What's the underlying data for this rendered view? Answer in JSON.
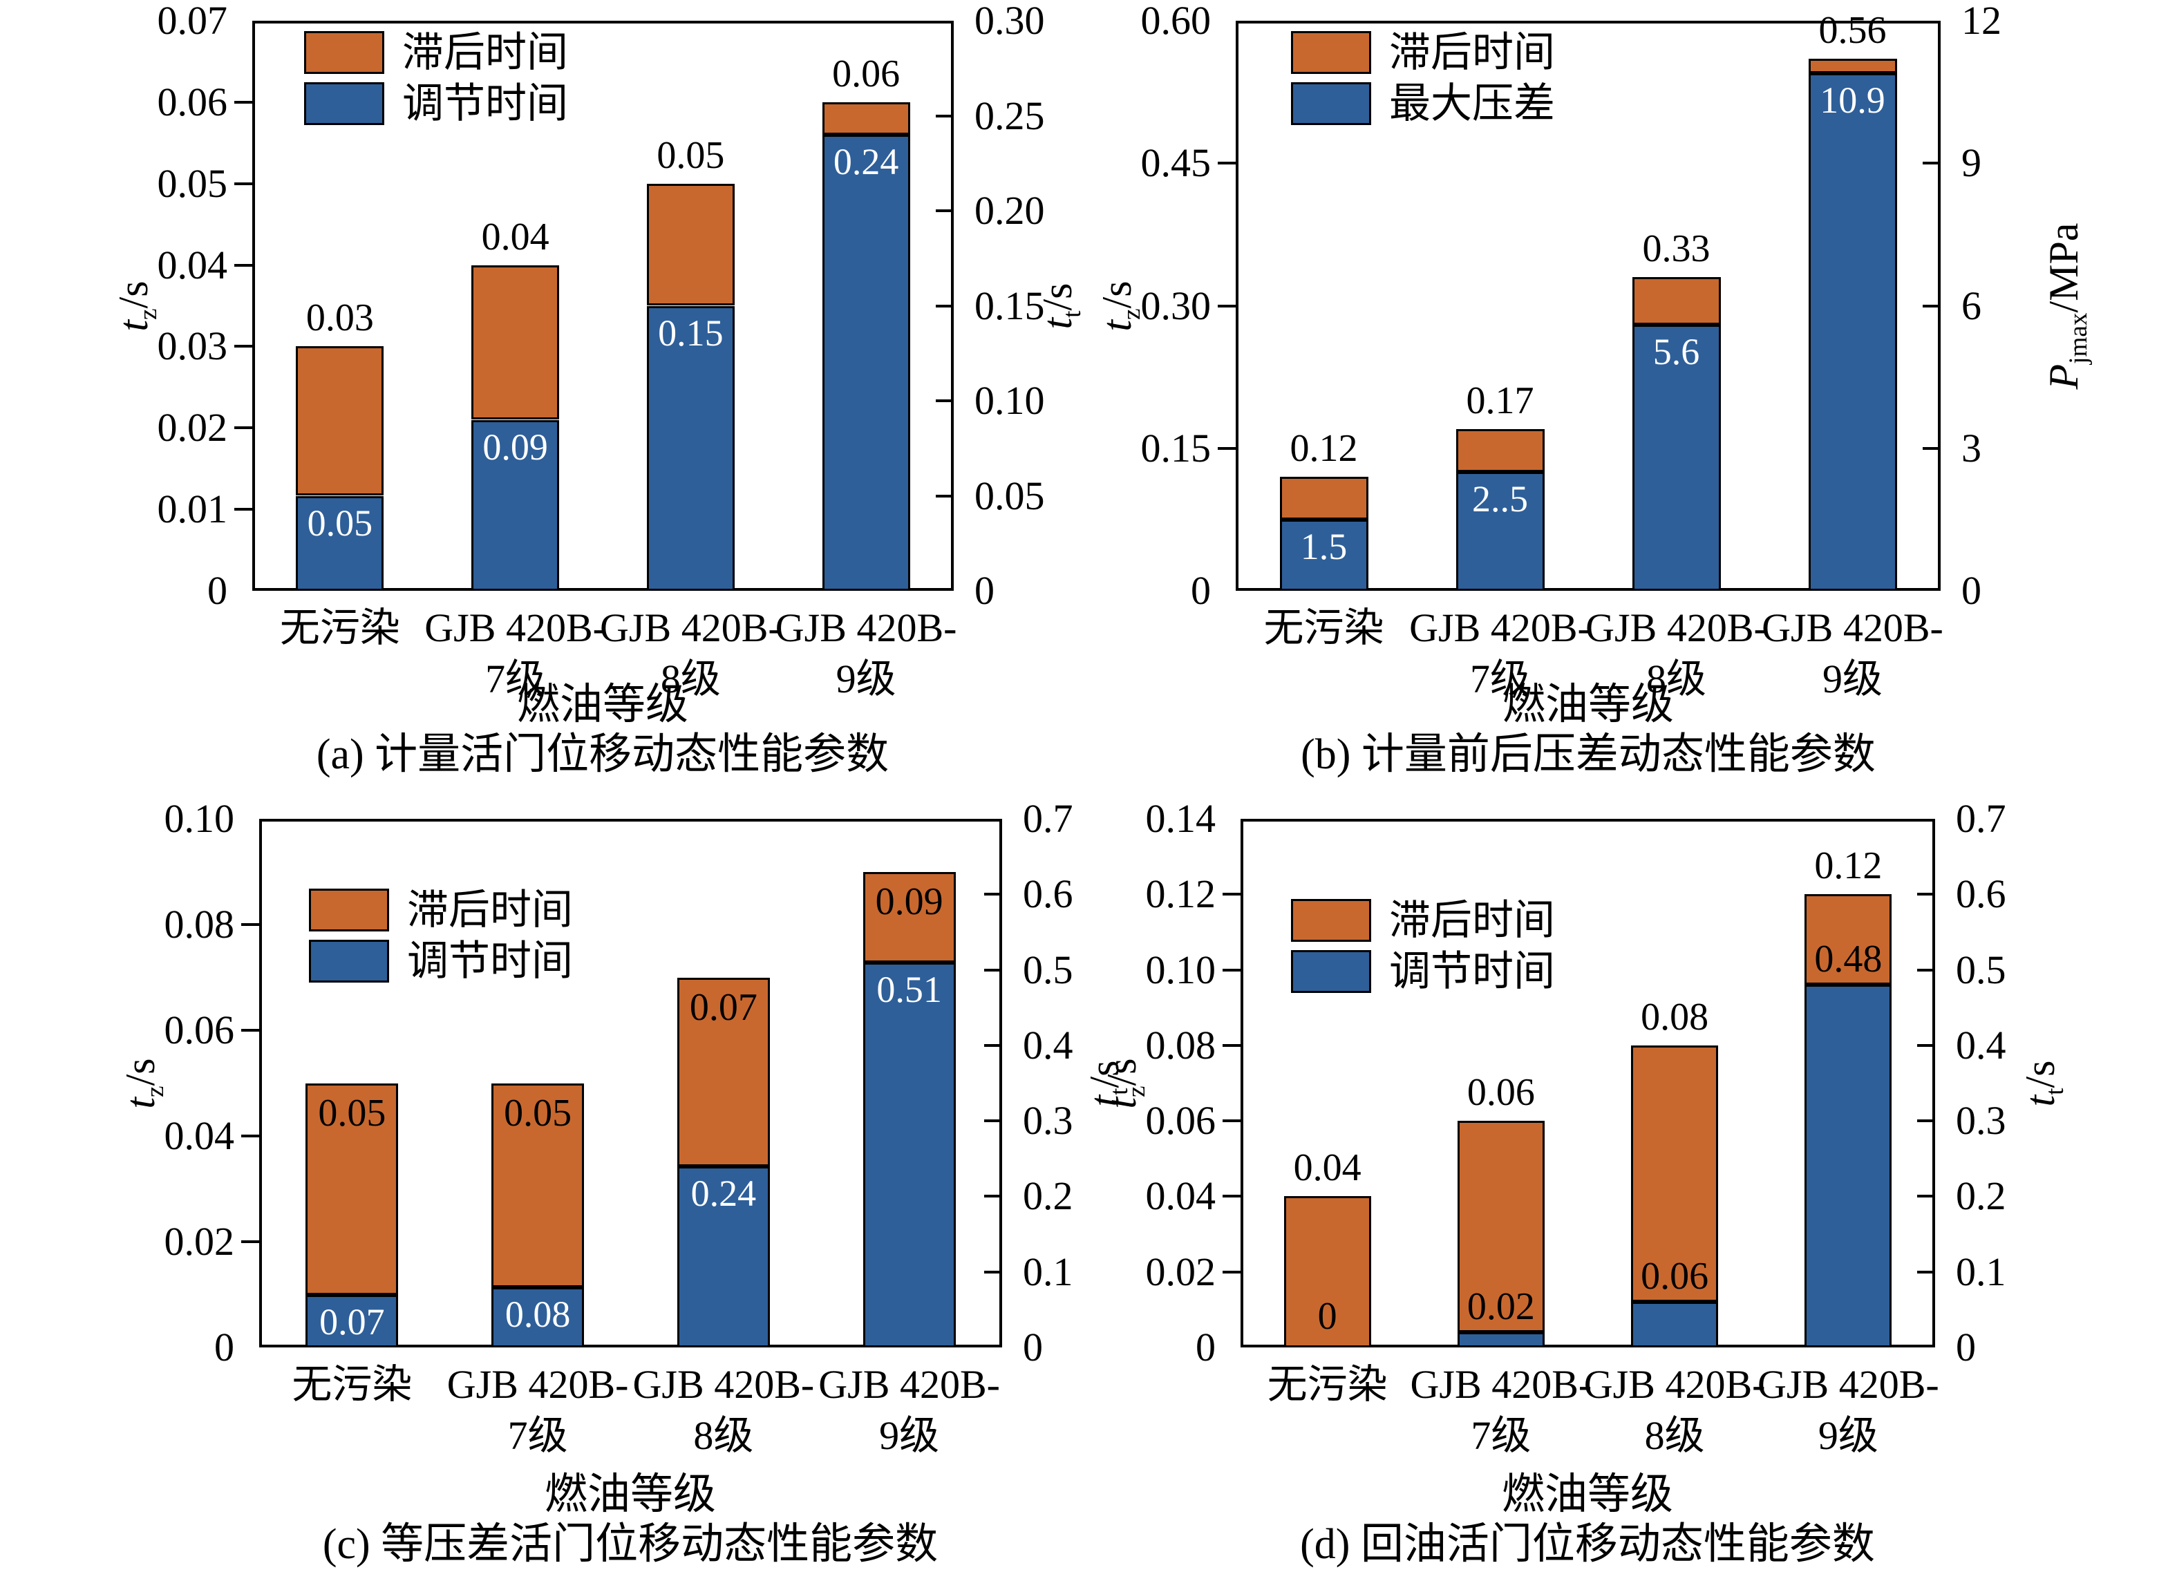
{
  "colors": {
    "lag_orange": "#C8682F",
    "series_blue": "#2E5F99",
    "bar_edge": "#000000",
    "label_white": "#ffffff",
    "label_black": "#000000"
  },
  "shared": {
    "x_axis_label": "燃油等级"
  },
  "chart_data": [
    {
      "id": "a",
      "type": "bar",
      "caption": "(a) 计量活门位移动态性能参数",
      "xlabel": "燃油等级",
      "categories": [
        [
          "无污染"
        ],
        [
          "GJB 420B-",
          "7级"
        ],
        [
          "GJB 420B-",
          "8级"
        ],
        [
          "GJB 420B-",
          "9级"
        ]
      ],
      "legend": [
        {
          "label": "滞后时间",
          "color_key": "lag_orange"
        },
        {
          "label": "调节时间",
          "color_key": "series_blue"
        }
      ],
      "left_axis": {
        "label_main": "t",
        "label_sub": "z",
        "label_unit": "/s",
        "min": 0,
        "max": 0.07,
        "tick_labels": [
          "0",
          "0.01",
          "0.02",
          "0.03",
          "0.04",
          "0.05",
          "0.06",
          "0.07"
        ]
      },
      "right_axis": {
        "label_main": "t",
        "label_sub": "t",
        "label_unit": "/s",
        "min": 0,
        "max": 0.3,
        "tick_labels": [
          "0",
          "0.05",
          "0.10",
          "0.15",
          "0.20",
          "0.25",
          "0.30"
        ]
      },
      "series": [
        {
          "name": "滞后时间",
          "role": "total",
          "axis": "left",
          "color_key": "lag_orange",
          "values": [
            0.03,
            0.04,
            0.05,
            0.06
          ],
          "labels": [
            "0.03",
            "0.04",
            "0.05",
            "0.06"
          ],
          "label_pos": "above"
        },
        {
          "name": "调节时间",
          "role": "inner",
          "axis": "right",
          "color_key": "series_blue",
          "values": [
            0.05,
            0.09,
            0.15,
            0.24
          ],
          "labels": [
            "0.05",
            "0.09",
            "0.15",
            "0.24"
          ],
          "label_style": "white-inside"
        }
      ]
    },
    {
      "id": "b",
      "type": "bar",
      "caption": "(b) 计量前后压差动态性能参数",
      "xlabel": "燃油等级",
      "categories": [
        [
          "无污染"
        ],
        [
          "GJB 420B-",
          "7级"
        ],
        [
          "GJB 420B-",
          "8级"
        ],
        [
          "GJB 420B-",
          "9级"
        ]
      ],
      "legend": [
        {
          "label": "滞后时间",
          "color_key": "lag_orange"
        },
        {
          "label": "最大压差",
          "color_key": "series_blue"
        }
      ],
      "left_axis": {
        "label_main": "t",
        "label_sub": "z",
        "label_unit": "/s",
        "min": 0,
        "max": 0.6,
        "tick_labels": [
          "0",
          "0.15",
          "0.30",
          "0.45",
          "0.60"
        ]
      },
      "right_axis": {
        "label_main": "P",
        "label_sub": "jmax",
        "label_unit": "/MPa",
        "min": 0,
        "max": 12,
        "tick_labels": [
          "0",
          "3",
          "6",
          "9",
          "12"
        ]
      },
      "series": [
        {
          "name": "滞后时间",
          "role": "total",
          "axis": "left",
          "color_key": "lag_orange",
          "values": [
            0.12,
            0.17,
            0.33,
            0.56
          ],
          "labels": [
            "0.12",
            "0.17",
            "0.33",
            "0.56"
          ],
          "label_pos": "above"
        },
        {
          "name": "最大压差",
          "role": "inner",
          "axis": "right",
          "color_key": "series_blue",
          "values": [
            1.5,
            2.5,
            5.6,
            10.9
          ],
          "labels": [
            "1.5",
            "2..5",
            "5.6",
            "10.9"
          ],
          "label_style": "white-inside"
        }
      ]
    },
    {
      "id": "c",
      "type": "bar",
      "caption": "(c) 等压差活门位移动态性能参数",
      "xlabel": "燃油等级",
      "categories": [
        [
          "无污染"
        ],
        [
          "GJB 420B-",
          "7级"
        ],
        [
          "GJB 420B-",
          "8级"
        ],
        [
          "GJB 420B-",
          "9级"
        ]
      ],
      "legend": [
        {
          "label": "滞后时间",
          "color_key": "lag_orange"
        },
        {
          "label": "调节时间",
          "color_key": "series_blue"
        }
      ],
      "left_axis": {
        "label_main": "t",
        "label_sub": "z",
        "label_unit": "/s",
        "min": 0,
        "max": 0.1,
        "tick_labels": [
          "0",
          "0.02",
          "0.04",
          "0.06",
          "0.08",
          "0.10"
        ]
      },
      "right_axis": {
        "label_main": "t",
        "label_sub": "t",
        "label_unit": "/s",
        "min": 0,
        "max": 0.7,
        "tick_labels": [
          "0",
          "0.1",
          "0.2",
          "0.3",
          "0.4",
          "0.5",
          "0.6",
          "0.7"
        ]
      },
      "series": [
        {
          "name": "滞后时间",
          "role": "total",
          "axis": "left",
          "color_key": "lag_orange",
          "values": [
            0.05,
            0.05,
            0.07,
            0.09
          ],
          "labels": [
            "0.05",
            "0.05",
            "0.07",
            "0.09"
          ],
          "label_pos": "inside-top"
        },
        {
          "name": "调节时间",
          "role": "inner",
          "axis": "right",
          "color_key": "series_blue",
          "values": [
            0.07,
            0.08,
            0.24,
            0.51
          ],
          "labels": [
            "0.07",
            "0.08",
            "0.24",
            "0.51"
          ],
          "label_style": "white-inside"
        }
      ]
    },
    {
      "id": "d",
      "type": "bar",
      "caption": "(d) 回油活门位移动态性能参数",
      "xlabel": "燃油等级",
      "categories": [
        [
          "无污染"
        ],
        [
          "GJB 420B-",
          "7级"
        ],
        [
          "GJB 420B-",
          "8级"
        ],
        [
          "GJB 420B-",
          "9级"
        ]
      ],
      "legend": [
        {
          "label": "滞后时间",
          "color_key": "lag_orange"
        },
        {
          "label": "调节时间",
          "color_key": "series_blue"
        }
      ],
      "left_axis": {
        "label_main": "t",
        "label_sub": "z",
        "label_unit": "/s",
        "min": 0,
        "max": 0.14,
        "tick_labels": [
          "0",
          "0.02",
          "0.04",
          "0.06",
          "0.08",
          "0.10",
          "0.12",
          "0.14"
        ]
      },
      "right_axis": {
        "label_main": "t",
        "label_sub": "t",
        "label_unit": "/s",
        "min": 0,
        "max": 0.7,
        "tick_labels": [
          "0",
          "0.1",
          "0.2",
          "0.3",
          "0.4",
          "0.5",
          "0.6",
          "0.7"
        ]
      },
      "series": [
        {
          "name": "滞后时间",
          "role": "total",
          "axis": "left",
          "color_key": "lag_orange",
          "values": [
            0.04,
            0.06,
            0.08,
            0.12
          ],
          "labels": [
            "0.04",
            "0.06",
            "0.08",
            "0.12"
          ],
          "label_pos": "above"
        },
        {
          "name": "调节时间",
          "role": "inner",
          "axis": "right",
          "color_key": "series_blue",
          "values": [
            0,
            0.02,
            0.06,
            0.48
          ],
          "labels": [
            "0",
            "0.02",
            "0.06",
            "0.48"
          ],
          "label_style": "black-above"
        }
      ]
    }
  ]
}
